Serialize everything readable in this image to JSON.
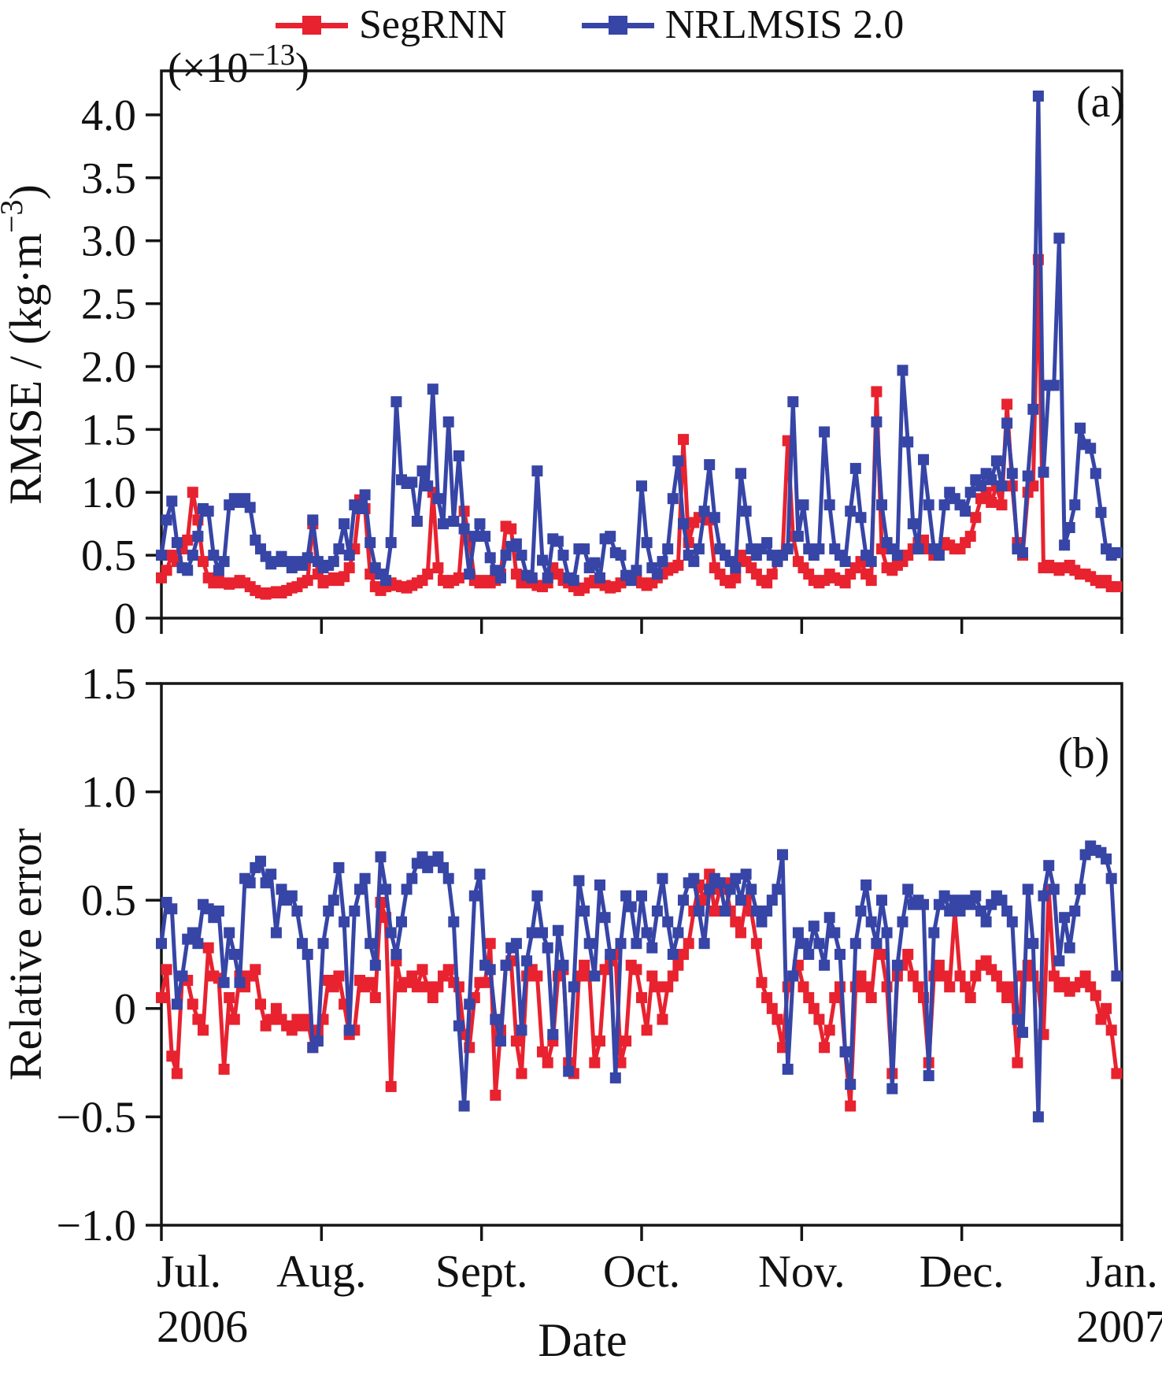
{
  "legend": {
    "items": [
      {
        "label": "SegRNN",
        "color": "#e8222f"
      },
      {
        "label": "NRLMSIS 2.0",
        "color": "#3645a6"
      }
    ]
  },
  "x_axis": {
    "label": "Date",
    "ticks": [
      {
        "label": "Jul.",
        "sub": "2006"
      },
      {
        "label": "Aug.",
        "sub": ""
      },
      {
        "label": "Sept.",
        "sub": ""
      },
      {
        "label": "Oct.",
        "sub": ""
      },
      {
        "label": "Nov.",
        "sub": ""
      },
      {
        "label": "Dec.",
        "sub": ""
      },
      {
        "label": "Jan.",
        "sub": "2007"
      }
    ]
  },
  "chart_data": [
    {
      "type": "line",
      "panel_label": "(a)",
      "scale_note": {
        "open": "(×10",
        "sup": "−13",
        "close": ")"
      },
      "ylabel": {
        "pre": "RMSE / (kg·m",
        "sup": "−3",
        "post": ")"
      },
      "ylim": [
        0,
        4.35
      ],
      "yticks": [
        0,
        0.5,
        1.0,
        1.5,
        2.0,
        2.5,
        3.0,
        3.5,
        4.0
      ],
      "ytick_labels": [
        "0",
        "0.5",
        "1.0",
        "1.5",
        "2.0",
        "2.5",
        "3.0",
        "3.5",
        "4.0"
      ],
      "x_range_days": 184,
      "grid": false,
      "series": [
        {
          "name": "SegRNN",
          "color": "#e8222f",
          "values": [
            0.32,
            0.38,
            0.5,
            0.45,
            0.55,
            0.62,
            1.0,
            0.78,
            0.45,
            0.32,
            0.28,
            0.3,
            0.28,
            0.27,
            0.28,
            0.3,
            0.28,
            0.25,
            0.22,
            0.2,
            0.19,
            0.2,
            0.21,
            0.2,
            0.22,
            0.24,
            0.25,
            0.28,
            0.3,
            0.75,
            0.35,
            0.28,
            0.3,
            0.32,
            0.3,
            0.33,
            0.4,
            0.55,
            0.94,
            0.87,
            0.35,
            0.25,
            0.22,
            0.25,
            0.28,
            0.26,
            0.25,
            0.24,
            0.26,
            0.28,
            0.3,
            0.35,
            1.0,
            0.4,
            0.3,
            0.28,
            0.3,
            0.32,
            0.85,
            0.62,
            0.3,
            0.28,
            0.3,
            0.28,
            0.3,
            0.35,
            0.73,
            0.71,
            0.35,
            0.28,
            0.3,
            0.28,
            0.26,
            0.25,
            0.28,
            0.4,
            0.35,
            0.3,
            0.28,
            0.25,
            0.22,
            0.24,
            0.28,
            0.3,
            0.28,
            0.26,
            0.24,
            0.25,
            0.28,
            0.3,
            0.32,
            0.3,
            0.28,
            0.26,
            0.28,
            0.32,
            0.35,
            0.38,
            0.4,
            0.42,
            1.42,
            0.6,
            0.76,
            0.8,
            0.82,
            0.78,
            0.4,
            0.35,
            0.3,
            0.28,
            0.32,
            0.5,
            0.45,
            0.4,
            0.35,
            0.3,
            0.28,
            0.35,
            0.45,
            0.5,
            1.41,
            0.65,
            0.45,
            0.4,
            0.35,
            0.3,
            0.28,
            0.3,
            0.35,
            0.32,
            0.3,
            0.28,
            0.35,
            0.4,
            0.45,
            0.35,
            0.3,
            1.8,
            0.55,
            0.4,
            0.38,
            0.42,
            0.45,
            0.5,
            0.55,
            0.6,
            0.62,
            0.55,
            0.5,
            0.55,
            0.6,
            0.58,
            0.55,
            0.55,
            0.6,
            0.65,
            0.8,
            0.95,
            1.0,
            0.92,
            1.05,
            0.9,
            1.7,
            1.05,
            0.6,
            0.5,
            1.0,
            1.05,
            2.85,
            0.4,
            0.42,
            0.4,
            0.38,
            0.4,
            0.42,
            0.38,
            0.35,
            0.35,
            0.33,
            0.3,
            0.28,
            0.3,
            0.25,
            0.25
          ]
        },
        {
          "name": "NRLMSIS 2.0",
          "color": "#3645a6",
          "values": [
            0.5,
            0.78,
            0.93,
            0.6,
            0.4,
            0.38,
            0.5,
            0.65,
            0.87,
            0.85,
            0.5,
            0.38,
            0.45,
            0.9,
            0.95,
            0.92,
            0.95,
            0.88,
            0.62,
            0.55,
            0.49,
            0.43,
            0.45,
            0.49,
            0.45,
            0.4,
            0.45,
            0.42,
            0.48,
            0.78,
            0.45,
            0.4,
            0.42,
            0.45,
            0.55,
            0.75,
            0.5,
            0.9,
            0.87,
            0.98,
            0.6,
            0.4,
            0.35,
            0.3,
            0.6,
            1.72,
            1.1,
            1.07,
            1.08,
            0.77,
            1.17,
            1.05,
            1.82,
            0.95,
            0.75,
            1.56,
            0.77,
            1.29,
            0.71,
            0.35,
            0.65,
            0.75,
            0.65,
            0.48,
            0.38,
            0.32,
            0.5,
            0.57,
            0.59,
            0.5,
            0.34,
            0.32,
            1.17,
            0.46,
            0.32,
            0.63,
            0.61,
            0.5,
            0.32,
            0.3,
            0.55,
            0.55,
            0.4,
            0.44,
            0.32,
            0.63,
            0.65,
            0.52,
            0.5,
            0.34,
            0.3,
            0.38,
            1.05,
            0.6,
            0.4,
            0.35,
            0.45,
            0.55,
            0.95,
            1.25,
            0.75,
            0.5,
            0.45,
            0.55,
            0.85,
            1.22,
            0.8,
            0.55,
            0.5,
            0.45,
            0.4,
            1.15,
            0.85,
            0.55,
            0.5,
            0.55,
            0.6,
            0.5,
            0.45,
            0.5,
            0.55,
            1.72,
            0.65,
            0.9,
            0.55,
            0.5,
            0.55,
            1.48,
            0.9,
            0.55,
            0.5,
            0.45,
            0.85,
            1.19,
            0.8,
            0.5,
            0.45,
            1.56,
            0.9,
            0.6,
            0.55,
            0.5,
            1.97,
            1.4,
            0.75,
            0.55,
            1.26,
            0.9,
            0.55,
            0.5,
            0.9,
            1.0,
            0.95,
            0.9,
            0.85,
            1.0,
            1.1,
            1.05,
            1.15,
            1.1,
            1.25,
            1.05,
            1.55,
            1.15,
            0.55,
            0.52,
            1.13,
            1.66,
            4.15,
            1.16,
            1.85,
            1.85,
            3.02,
            0.58,
            0.72,
            0.9,
            1.51,
            1.38,
            1.35,
            1.15,
            0.84,
            0.55,
            0.5,
            0.52
          ]
        }
      ]
    },
    {
      "type": "line",
      "panel_label": "(b)",
      "scale_note": null,
      "ylabel": {
        "pre": "Relative error",
        "sup": "",
        "post": ""
      },
      "ylim": [
        -1.0,
        1.5
      ],
      "yticks": [
        -1.0,
        -0.5,
        0,
        0.5,
        1.0,
        1.5
      ],
      "ytick_labels": [
        "−1.0",
        "−0.5",
        "0",
        "0.5",
        "1.0",
        "1.5"
      ],
      "x_range_days": 184,
      "grid": false,
      "series": [
        {
          "name": "SegRNN",
          "color": "#e8222f",
          "values": [
            0.05,
            0.18,
            -0.22,
            -0.3,
            0.15,
            0.13,
            0.02,
            -0.05,
            -0.1,
            0.28,
            0.15,
            0.14,
            -0.28,
            0.05,
            -0.05,
            0.15,
            0.1,
            0.15,
            0.18,
            0.02,
            -0.08,
            -0.05,
            0.0,
            -0.05,
            -0.08,
            -0.1,
            -0.05,
            -0.08,
            -0.05,
            -0.18,
            -0.1,
            -0.05,
            0.13,
            0.1,
            0.15,
            0.02,
            -0.12,
            -0.1,
            0.13,
            0.1,
            0.12,
            0.05,
            0.49,
            0.42,
            -0.36,
            0.22,
            0.1,
            0.12,
            0.15,
            0.1,
            0.18,
            0.1,
            0.05,
            0.1,
            0.15,
            0.18,
            0.12,
            0.1,
            -0.12,
            -0.18,
            0.05,
            0.12,
            0.12,
            0.3,
            -0.4,
            -0.1,
            0.2,
            0.22,
            -0.15,
            -0.3,
            0.15,
            0.18,
            0.15,
            -0.2,
            -0.25,
            -0.15,
            0.15,
            0.18,
            -0.25,
            -0.3,
            0.15,
            0.2,
            0.15,
            -0.25,
            -0.15,
            0.18,
            0.22,
            0.25,
            -0.25,
            -0.15,
            0.2,
            0.18,
            0.05,
            -0.1,
            0.15,
            0.1,
            -0.05,
            0.1,
            0.15,
            0.2,
            0.25,
            0.3,
            0.45,
            0.57,
            0.5,
            0.62,
            0.45,
            0.55,
            0.58,
            0.45,
            0.4,
            0.35,
            0.5,
            0.45,
            0.3,
            0.12,
            0.05,
            0.0,
            -0.05,
            -0.18,
            0.1,
            0.15,
            0.2,
            0.1,
            0.05,
            0.0,
            -0.05,
            -0.18,
            -0.1,
            0.05,
            0.1,
            -0.2,
            -0.45,
            0.1,
            0.15,
            0.1,
            0.05,
            0.3,
            0.25,
            0.1,
            -0.3,
            0.15,
            0.2,
            0.25,
            0.15,
            0.1,
            0.05,
            -0.25,
            0.15,
            0.2,
            0.15,
            0.1,
            0.45,
            0.15,
            0.1,
            0.05,
            0.15,
            0.2,
            0.22,
            0.18,
            0.15,
            0.1,
            0.05,
            0.1,
            -0.25,
            0.15,
            0.2,
            0.15,
            0.1,
            -0.12,
            0.55,
            0.15,
            0.1,
            0.12,
            0.08,
            0.1,
            0.12,
            0.15,
            0.1,
            0.06,
            -0.05,
            0.0,
            -0.1,
            -0.3
          ]
        },
        {
          "name": "NRLMSIS 2.0",
          "color": "#3645a6",
          "values": [
            0.3,
            0.49,
            0.46,
            0.02,
            0.15,
            0.32,
            0.35,
            0.3,
            0.48,
            0.46,
            0.42,
            0.45,
            0.12,
            0.35,
            0.25,
            0.12,
            0.6,
            0.58,
            0.65,
            0.68,
            0.58,
            0.62,
            0.35,
            0.55,
            0.5,
            0.52,
            0.45,
            0.3,
            0.25,
            -0.18,
            -0.15,
            0.3,
            0.45,
            0.5,
            0.65,
            0.4,
            -0.1,
            0.45,
            0.55,
            0.6,
            0.3,
            0.2,
            0.7,
            0.55,
            0.35,
            0.25,
            0.4,
            0.55,
            0.6,
            0.67,
            0.7,
            0.65,
            0.68,
            0.7,
            0.65,
            0.6,
            0.4,
            -0.08,
            -0.45,
            0.02,
            0.52,
            0.62,
            0.2,
            0.18,
            -0.05,
            -0.15,
            0.2,
            0.28,
            0.3,
            -0.1,
            0.22,
            0.35,
            0.52,
            0.35,
            0.28,
            -0.12,
            0.36,
            0.2,
            -0.29,
            0.1,
            0.59,
            0.45,
            0.3,
            0.15,
            0.57,
            0.42,
            0.25,
            -0.32,
            0.3,
            0.52,
            0.47,
            0.3,
            0.52,
            0.35,
            0.28,
            0.45,
            0.6,
            0.4,
            0.25,
            0.35,
            0.5,
            0.58,
            0.6,
            0.45,
            0.3,
            0.55,
            0.6,
            0.58,
            0.45,
            0.55,
            0.6,
            0.5,
            0.62,
            0.55,
            0.45,
            0.4,
            0.45,
            0.5,
            0.55,
            0.71,
            -0.28,
            0.15,
            0.35,
            0.3,
            0.25,
            0.38,
            0.3,
            0.2,
            0.42,
            0.35,
            0.25,
            -0.2,
            -0.35,
            0.3,
            0.45,
            0.57,
            0.4,
            0.3,
            0.5,
            0.35,
            -0.37,
            0.2,
            0.4,
            0.55,
            0.48,
            0.5,
            0.48,
            -0.31,
            0.35,
            0.48,
            0.52,
            0.45,
            0.5,
            0.45,
            0.5,
            0.48,
            0.52,
            0.45,
            0.4,
            0.48,
            0.52,
            0.5,
            0.45,
            0.4,
            -0.05,
            -0.11,
            0.55,
            0.3,
            -0.5,
            0.52,
            0.66,
            0.55,
            0.22,
            0.42,
            0.28,
            0.45,
            0.55,
            0.71,
            0.75,
            0.73,
            0.72,
            0.69,
            0.6,
            0.15
          ]
        }
      ]
    }
  ]
}
